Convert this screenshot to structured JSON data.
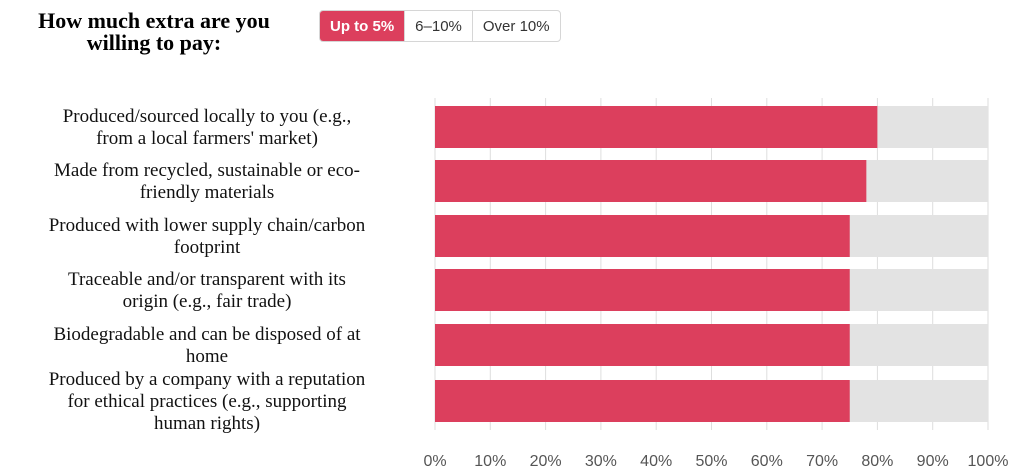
{
  "header": {
    "question": "How much extra are you willing to pay:",
    "toggle": [
      {
        "label": "Up to 5%",
        "active": true
      },
      {
        "label": "6–10%",
        "active": false
      },
      {
        "label": "Over 10%",
        "active": false
      }
    ]
  },
  "colors": {
    "bar": "#dc3f5d",
    "track": "#e3e3e3",
    "grid": "#dedede"
  },
  "chart_data": {
    "type": "bar",
    "orientation": "horizontal",
    "categories": [
      [
        "Produced/sourced locally to you (e.g.,",
        "from a local farmers' market)"
      ],
      [
        "Made from recycled, sustainable or eco-",
        "friendly materials"
      ],
      [
        "Produced with lower supply chain/carbon",
        "footprint"
      ],
      [
        "Traceable and/or transparent with its",
        "origin (e.g., fair trade)"
      ],
      [
        "Biodegradable and can be disposed of at",
        "home"
      ],
      [
        "Produced by a company with a reputation",
        "for ethical practices (e.g., supporting",
        "human rights)"
      ]
    ],
    "values": [
      80,
      78,
      75,
      75,
      75,
      75
    ],
    "xlim": [
      0,
      100
    ],
    "xticks": [
      "0%",
      "10%",
      "20%",
      "30%",
      "40%",
      "50%",
      "60%",
      "70%",
      "80%",
      "90%",
      "100%"
    ],
    "grid": true,
    "legend": "none"
  }
}
